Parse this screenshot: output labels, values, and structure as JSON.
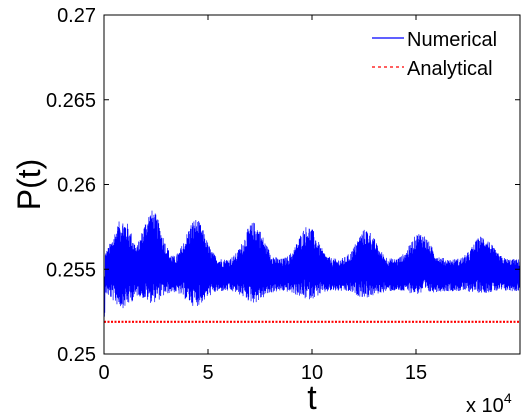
{
  "chart_data": {
    "type": "line",
    "xlabel": "t",
    "ylabel": "P(t)",
    "x_multiplier_label": "x 10",
    "x_multiplier_exponent": "4",
    "xlim": [
      0,
      20
    ],
    "ylim": [
      0.25,
      0.27
    ],
    "x_ticks": [
      0,
      5,
      10,
      15
    ],
    "x_tick_labels": [
      "0",
      "5",
      "10",
      "15"
    ],
    "y_ticks": [
      0.25,
      0.255,
      0.26,
      0.265,
      0.27
    ],
    "y_tick_labels": [
      "0.25",
      "0.255",
      "0.26",
      "0.265",
      "0.27"
    ],
    "grid": false,
    "legend_position": "top-right",
    "series": [
      {
        "name": "Numerical",
        "style": "solid",
        "color": "#0000ff",
        "baseline": 0.2548,
        "oscillation_period": 2.7,
        "envelope_peaks": [
          {
            "x": 0.9,
            "low": 0.2527,
            "high": 0.258
          },
          {
            "x": 2.3,
            "low": 0.253,
            "high": 0.2585
          },
          {
            "x": 4.4,
            "low": 0.2528,
            "high": 0.258
          },
          {
            "x": 7.2,
            "low": 0.253,
            "high": 0.2578
          },
          {
            "x": 9.8,
            "low": 0.2532,
            "high": 0.2576
          },
          {
            "x": 12.6,
            "low": 0.2533,
            "high": 0.2574
          },
          {
            "x": 15.2,
            "low": 0.2535,
            "high": 0.2572
          },
          {
            "x": 18.2,
            "low": 0.2536,
            "high": 0.257
          }
        ],
        "trough_band": [
          0.2537,
          0.2556
        ]
      },
      {
        "name": "Analytical",
        "style": "dashed",
        "color": "#ff0000",
        "values": [
          [
            0,
            0.2519
          ],
          [
            20,
            0.2519
          ]
        ]
      }
    ]
  }
}
